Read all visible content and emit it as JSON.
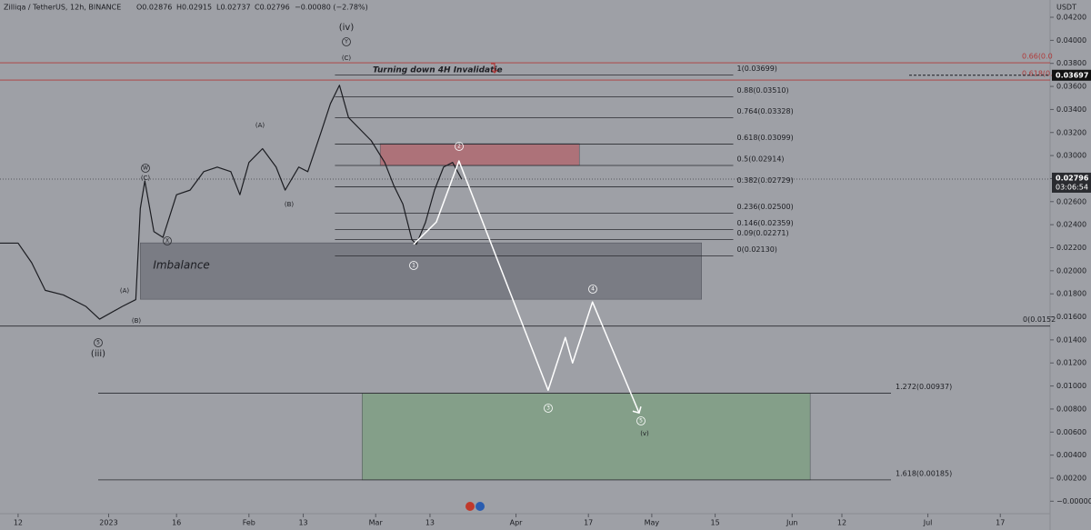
{
  "header": {
    "symbol": "Zilliqa / TetherUS, 12h, BINANCE",
    "open": "O0.02876",
    "high": "H0.02915",
    "low": "L0.02737",
    "close": "C0.02796",
    "change": "−0.00080 (−2.78%)"
  },
  "chart_data": {
    "type": "line",
    "unit": "USDT",
    "xlim": [
      7,
      239
    ],
    "xticks": [
      {
        "value": 11,
        "label": "12"
      },
      {
        "value": 31,
        "label": "2023"
      },
      {
        "value": 46,
        "label": "16"
      },
      {
        "value": 62,
        "label": "Feb"
      },
      {
        "value": 74,
        "label": "13"
      },
      {
        "value": 90,
        "label": "Mar"
      },
      {
        "value": 102,
        "label": "13"
      },
      {
        "value": 121,
        "label": "Apr"
      },
      {
        "value": 137,
        "label": "17"
      },
      {
        "value": 151,
        "label": "May"
      },
      {
        "value": 165,
        "label": "15"
      },
      {
        "value": 182,
        "label": "Jun"
      },
      {
        "value": 193,
        "label": "12"
      },
      {
        "value": 212,
        "label": "Jul"
      },
      {
        "value": 228,
        "label": "17"
      }
    ],
    "ylim": [
      -0.001,
      0.0435
    ],
    "yticks": [
      {
        "value": 0,
        "label": "−0.00000"
      },
      {
        "value": 0.002,
        "label": "0.00200"
      },
      {
        "value": 0.004,
        "label": "0.00400"
      },
      {
        "value": 0.006,
        "label": "0.00600"
      },
      {
        "value": 0.008,
        "label": "0.00800"
      },
      {
        "value": 0.01,
        "label": "0.01000"
      },
      {
        "value": 0.012,
        "label": "0.01200"
      },
      {
        "value": 0.014,
        "label": "0.01400"
      },
      {
        "value": 0.016,
        "label": "0.01600"
      },
      {
        "value": 0.018,
        "label": "0.01800"
      },
      {
        "value": 0.02,
        "label": "0.02000"
      },
      {
        "value": 0.022,
        "label": "0.02200"
      },
      {
        "value": 0.024,
        "label": "0.02400"
      },
      {
        "value": 0.026,
        "label": "0.02600"
      },
      {
        "value": 0.028,
        "label": "0.02800"
      },
      {
        "value": 0.03,
        "label": "0.03000"
      },
      {
        "value": 0.032,
        "label": "0.03200"
      },
      {
        "value": 0.034,
        "label": "0.03400"
      },
      {
        "value": 0.036,
        "label": "0.03600"
      },
      {
        "value": 0.038,
        "label": "0.03800"
      },
      {
        "value": 0.04,
        "label": "0.04000"
      },
      {
        "value": 0.042,
        "label": "0.04200"
      }
    ],
    "series": [
      {
        "color": "#1c1d22",
        "x": [
          7,
          11,
          14,
          17,
          21,
          26,
          29,
          34,
          37,
          38,
          39,
          41,
          43,
          46,
          49,
          52,
          55,
          58,
          60,
          62,
          65,
          68,
          70,
          73,
          75,
          78,
          80,
          82,
          84,
          87,
          89,
          92,
          94,
          96,
          98,
          99,
          101,
          103,
          105,
          107,
          109
        ],
        "values": [
          0.0224,
          0.0224,
          0.0207,
          0.0183,
          0.0179,
          0.0169,
          0.0158,
          0.0169,
          0.0175,
          0.0254,
          0.0278,
          0.0234,
          0.0229,
          0.0266,
          0.027,
          0.0286,
          0.029,
          0.0286,
          0.0266,
          0.0294,
          0.0306,
          0.029,
          0.027,
          0.029,
          0.0286,
          0.0321,
          0.0345,
          0.0361,
          0.0333,
          0.0321,
          0.0313,
          0.0294,
          0.0274,
          0.0258,
          0.0227,
          0.0223,
          0.0242,
          0.027,
          0.029,
          0.0294,
          0.02796
        ]
      },
      {
        "color": "#ffffff",
        "x": [
          98.4,
          103.4,
          108.4,
          128.1,
          131.9,
          133.5,
          137.9,
          148.2
        ],
        "values": [
          0.0223,
          0.02423,
          0.02953,
          0.00963,
          0.01421,
          0.012,
          0.01729,
          0.00766
        ]
      }
    ],
    "fib_x": [
      81,
      169
    ],
    "fib_levels": [
      {
        "value": 0.03699,
        "label": "1(0.03699)"
      },
      {
        "value": 0.0351,
        "label": "0.88(0.03510)"
      },
      {
        "value": 0.03328,
        "label": "0.764(0.03328)"
      },
      {
        "value": 0.03099,
        "label": "0.618(0.03099)"
      },
      {
        "value": 0.02914,
        "label": "0.5(0.02914)"
      },
      {
        "value": 0.02729,
        "label": "0.382(0.02729)"
      },
      {
        "value": 0.025,
        "label": "0.236(0.02500)"
      },
      {
        "value": 0.02359,
        "label": "0.146(0.02359)"
      },
      {
        "value": 0.02271,
        "label": "0.09(0.02271)"
      },
      {
        "value": 0.0213,
        "label": "0(0.02130)"
      }
    ],
    "extensions": [
      {
        "value": 0.0152,
        "label": "0(0.0152"
      },
      {
        "value": 0.00937,
        "label": "1.272(0.00937)"
      },
      {
        "value": 0.00185,
        "label": "1.618(0.00185)"
      }
    ],
    "red_levels": [
      {
        "value": 0.03805,
        "label": "0.66(0.0"
      },
      {
        "value": 0.03655,
        "label": "0.618(0."
      }
    ],
    "zones": [
      {
        "label": "Imbalance",
        "x": [
          38,
          162
        ],
        "y": [
          0.01753,
          0.02242
        ],
        "color": "#6e7078"
      },
      {
        "x": [
          91,
          135
        ],
        "y": [
          0.02913,
          0.03103
        ],
        "color": "#b2636a"
      },
      {
        "x": [
          87,
          186
        ],
        "y": [
          0.00185,
          0.00937
        ],
        "color": "#7b9f7f"
      }
    ],
    "last_price": {
      "value": 0.02796,
      "label": "0.02796",
      "countdown": "03:06:54"
    },
    "marked_price": {
      "value": 0.03697,
      "label": "0.03697"
    },
    "invalidation": "Turning down 4H Invalidatie",
    "waves": [
      {
        "text": "(iv)"
      },
      {
        "text": "Y",
        "circled": true
      },
      {
        "text": "(C)"
      },
      {
        "text": "(A)"
      },
      {
        "text": "(B)"
      },
      {
        "text": "W",
        "circled": true
      },
      {
        "text": "(C)"
      },
      {
        "text": "X",
        "circled": true
      },
      {
        "text": "(A)"
      },
      {
        "text": "(B)"
      },
      {
        "text": "5",
        "circled": true
      },
      {
        "text": "(iii)"
      },
      {
        "text": "1",
        "circled": true
      },
      {
        "text": "2",
        "circled": true
      },
      {
        "text": "3",
        "circled": true
      },
      {
        "text": "4",
        "circled": true
      },
      {
        "text": "5",
        "circled": true
      },
      {
        "text": "(v)"
      }
    ]
  }
}
